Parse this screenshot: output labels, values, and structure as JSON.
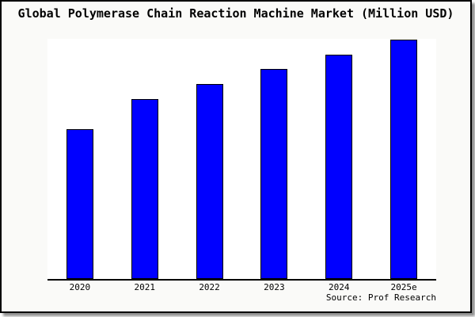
{
  "title": "Global Polymerase Chain Reaction Machine Market (Million USD)",
  "source_credit": "Source: Prof Research",
  "colors": {
    "bar_fill": "#0000ff",
    "bar_border": "#000000",
    "frame_border": "#000000",
    "frame_background": "#fafaf8",
    "plot_background": "#ffffff",
    "axis_color": "#000000",
    "shadow": "#8f8f8f"
  },
  "chart_data": {
    "type": "bar",
    "title": "Global Polymerase Chain Reaction Machine Market (Million USD)",
    "categories": [
      "2020",
      "2021",
      "2022",
      "2023",
      "2024",
      "2025e"
    ],
    "values": [
      189,
      227,
      246,
      265,
      283,
      302
    ],
    "value_note": "y-axis has no tick labels in source image; values are relative bar heights (px)",
    "xlabel": "",
    "ylabel": "",
    "ylim": [
      0,
      310
    ],
    "grid": false,
    "legend": false,
    "axes_visible": [
      "bottom"
    ],
    "annotations": [
      "Source: Prof Research"
    ]
  }
}
